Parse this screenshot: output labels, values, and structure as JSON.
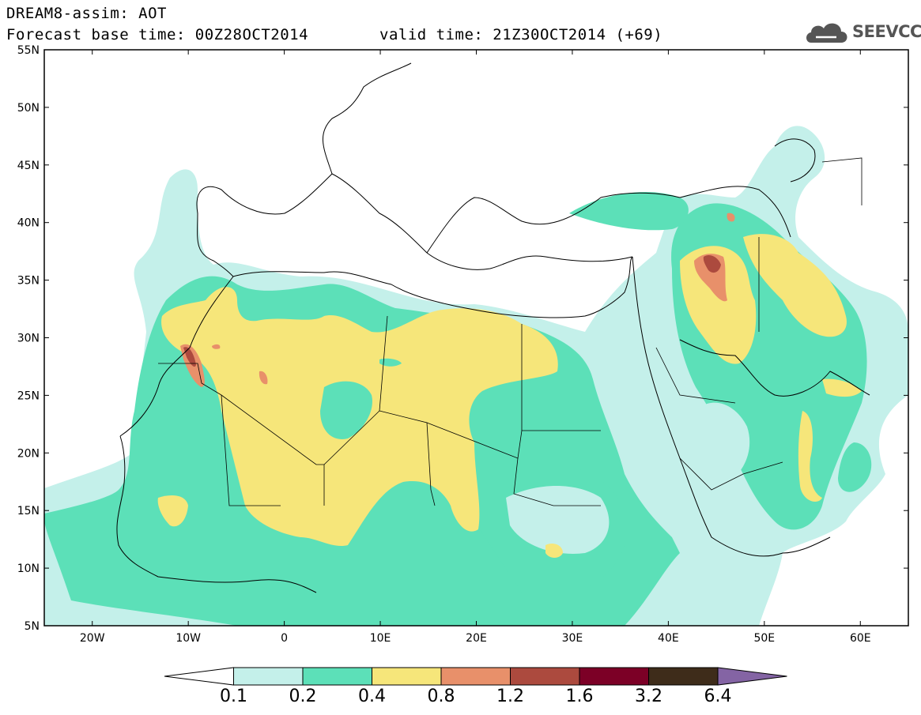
{
  "header": {
    "title_line1": "DREAM8-assim: AOT",
    "title_line2": "Forecast base time: 00Z28OCT2014",
    "valid_time": "valid time: 21Z30OCT2014 (+69)",
    "logo_text": "SEEVCCC",
    "logo_icon": "cloud-icon"
  },
  "map": {
    "lon_range": [
      -25,
      65
    ],
    "lat_range": [
      5,
      55
    ],
    "lat_labels": [
      "55N",
      "50N",
      "45N",
      "40N",
      "35N",
      "30N",
      "25N",
      "20N",
      "15N",
      "10N",
      "5N"
    ],
    "lon_labels": [
      "20W",
      "10W",
      "0",
      "10E",
      "20E",
      "30E",
      "40E",
      "50E",
      "60E"
    ],
    "colors": {
      "level1": "#c4f0ea",
      "level2": "#5ce0b8",
      "level3": "#f6e67a",
      "level4": "#e8906a",
      "level5": "#ac4a3e"
    }
  },
  "colorbar": {
    "labels": [
      "0.1",
      "0.2",
      "0.4",
      "0.8",
      "1.2",
      "1.6",
      "3.2",
      "6.4"
    ],
    "colors": [
      "#c4f0ea",
      "#5ce0b8",
      "#f6e67a",
      "#e8906a",
      "#ac4a3e",
      "#7c0026",
      "#3e2c1a"
    ],
    "max_color": "#8464a4"
  }
}
